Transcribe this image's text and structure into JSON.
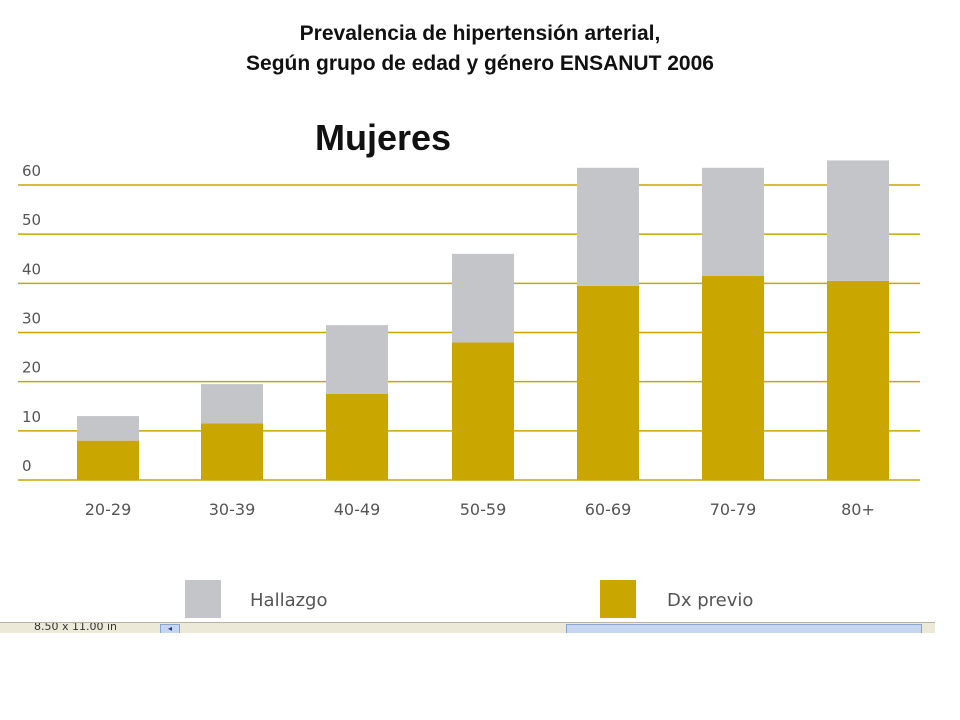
{
  "header": {
    "title_line1": "Prevalencia de hipertensión arterial,",
    "title_line2": "Según grupo de edad y género  ENSANUT 2006",
    "subtitle": "Mujeres"
  },
  "status": {
    "text": "8.50 x 11.00 in"
  },
  "colors": {
    "hallazgo": "#c4c5c9",
    "dx_previo": "#c9a600",
    "gridline": "#c9a600"
  },
  "chart_data": {
    "type": "bar",
    "stacked": true,
    "categories": [
      "20-29",
      "30-39",
      "40-49",
      "50-59",
      "60-69",
      "70-79",
      "80+"
    ],
    "series": [
      {
        "name": "Dx previo",
        "values": [
          8,
          11.5,
          17.5,
          28,
          39.5,
          41.5,
          40.5
        ]
      },
      {
        "name": "Hallazgo",
        "values": [
          5,
          8,
          14,
          18,
          24,
          22,
          24.5
        ]
      }
    ],
    "yticks": [
      0,
      10,
      20,
      30,
      40,
      50,
      60
    ],
    "ylim": [
      0,
      60
    ],
    "grid": true,
    "legend_position": "bottom"
  }
}
